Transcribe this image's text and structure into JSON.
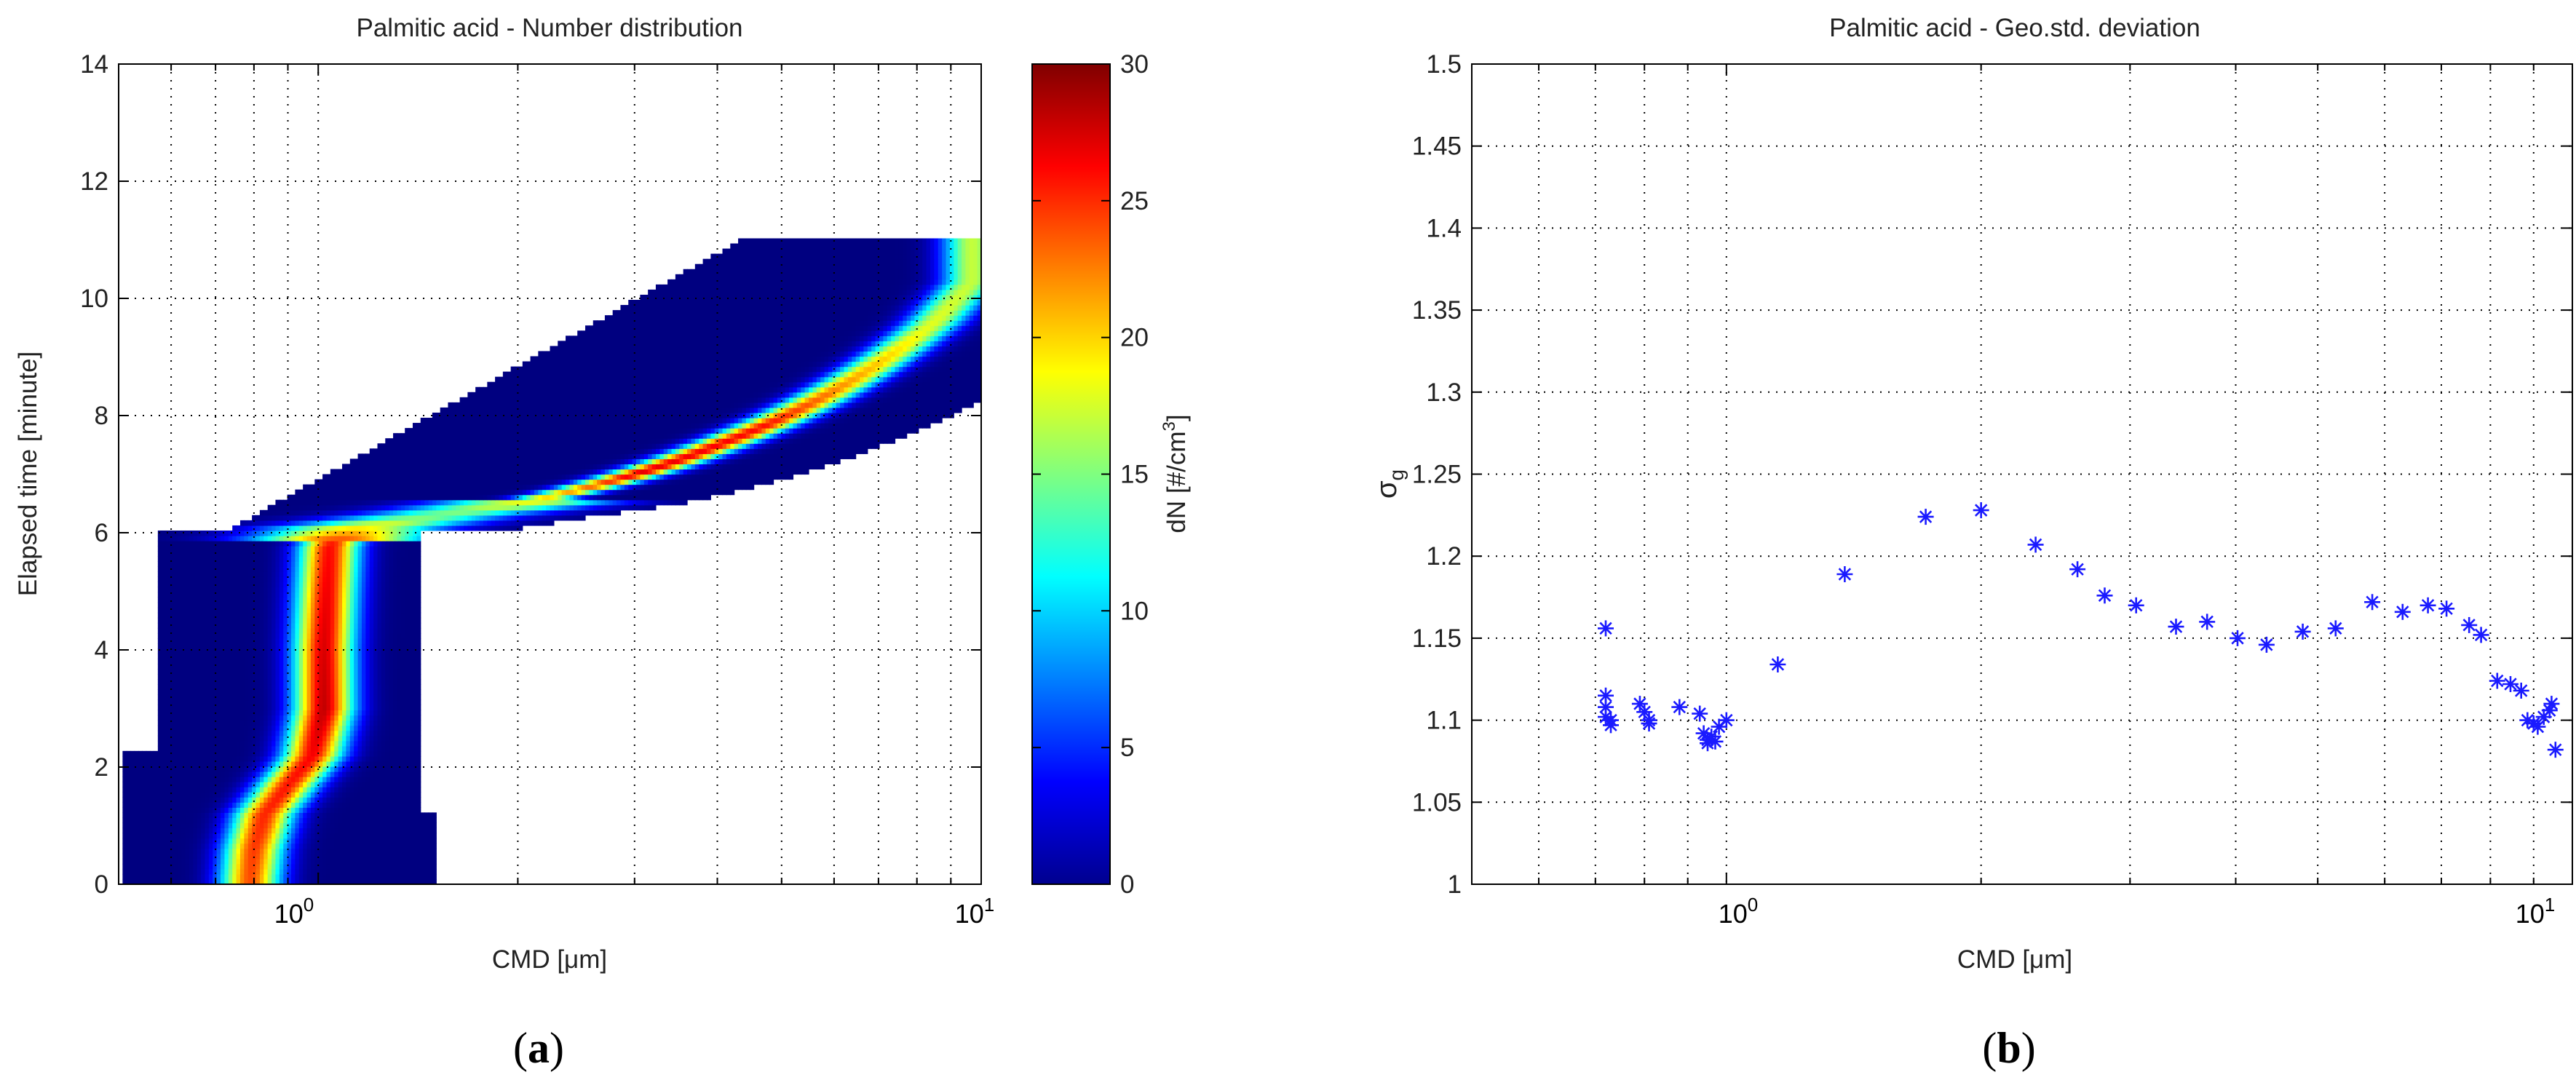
{
  "chart_data": [
    {
      "type": "heatmap",
      "panel_label_open": "(",
      "panel_label_letter": "a",
      "panel_label_close": ")",
      "title": "Palmitic acid - Number distribution",
      "xlabel": "CMD [μm]",
      "ylabel": "Elapsed time [minute]",
      "x_scale": "log",
      "xlim": [
        0.5,
        10
      ],
      "ylim": [
        0,
        14
      ],
      "y_ticks": [
        "0",
        "2",
        "4",
        "6",
        "8",
        "10",
        "12",
        "14"
      ],
      "x_tick_base": "10",
      "x_tick_exponents": [
        "0",
        "1"
      ],
      "grid": true,
      "colormap": "jet",
      "colorbar": {
        "label_prefix": "dN [#/cm",
        "label_sup": "3",
        "label_suffix": "]",
        "min": 0,
        "max": 30,
        "ticks": [
          "0",
          "5",
          "10",
          "15",
          "20",
          "25",
          "30"
        ]
      },
      "ridge": [
        {
          "t": 0.1,
          "cmd": 0.79
        },
        {
          "t": 0.6,
          "cmd": 0.8
        },
        {
          "t": 1.2,
          "cmd": 0.83
        },
        {
          "t": 1.7,
          "cmd": 0.9
        },
        {
          "t": 2.2,
          "cmd": 0.98
        },
        {
          "t": 3.0,
          "cmd": 1.02
        },
        {
          "t": 4.0,
          "cmd": 1.02
        },
        {
          "t": 5.0,
          "cmd": 1.03
        },
        {
          "t": 5.8,
          "cmd": 1.04
        },
        {
          "t": 6.1,
          "cmd": 1.15
        },
        {
          "t": 6.3,
          "cmd": 1.5
        },
        {
          "t": 6.5,
          "cmd": 2.0
        },
        {
          "t": 6.9,
          "cmd": 2.8
        },
        {
          "t": 7.5,
          "cmd": 4.0
        },
        {
          "t": 8.2,
          "cmd": 5.5
        },
        {
          "t": 8.9,
          "cmd": 7.0
        },
        {
          "t": 9.6,
          "cmd": 8.5
        },
        {
          "t": 10.3,
          "cmd": 9.7
        }
      ],
      "ridge_peak": [
        {
          "t": 0.1,
          "v": 24
        },
        {
          "t": 1.0,
          "v": 25
        },
        {
          "t": 2.0,
          "v": 26
        },
        {
          "t": 3.0,
          "v": 28
        },
        {
          "t": 4.5,
          "v": 27
        },
        {
          "t": 5.8,
          "v": 26
        },
        {
          "t": 6.3,
          "v": 14
        },
        {
          "t": 7.0,
          "v": 27
        },
        {
          "t": 7.8,
          "v": 26
        },
        {
          "t": 8.5,
          "v": 22
        },
        {
          "t": 9.5,
          "v": 18
        },
        {
          "t": 10.3,
          "v": 17
        }
      ]
    },
    {
      "type": "scatter",
      "panel_label_open": "(",
      "panel_label_letter": "b",
      "panel_label_close": ")",
      "title": "Palmitic acid - Geo.std. deviation",
      "xlabel": "CMD [μm]",
      "ylabel_main": "σ",
      "ylabel_sub": "g",
      "x_scale": "log",
      "xlim": [
        0.5,
        10
      ],
      "ylim": [
        1.0,
        1.5
      ],
      "y_ticks": [
        "1",
        "1.05",
        "1.1",
        "1.15",
        "1.2",
        "1.25",
        "1.3",
        "1.35",
        "1.4",
        "1.45",
        "1.5"
      ],
      "x_tick_base": "10",
      "x_tick_exponents": [
        "0",
        "1"
      ],
      "grid": true,
      "marker": "*",
      "color": "#1a1aff",
      "points": [
        {
          "x": 0.72,
          "y": 1.156
        },
        {
          "x": 0.72,
          "y": 1.115
        },
        {
          "x": 0.72,
          "y": 1.108
        },
        {
          "x": 0.72,
          "y": 1.102
        },
        {
          "x": 0.73,
          "y": 1.1
        },
        {
          "x": 0.73,
          "y": 1.097
        },
        {
          "x": 0.79,
          "y": 1.11
        },
        {
          "x": 0.8,
          "y": 1.105
        },
        {
          "x": 0.81,
          "y": 1.1
        },
        {
          "x": 0.81,
          "y": 1.098
        },
        {
          "x": 0.88,
          "y": 1.108
        },
        {
          "x": 0.93,
          "y": 1.104
        },
        {
          "x": 0.94,
          "y": 1.092
        },
        {
          "x": 0.95,
          "y": 1.088
        },
        {
          "x": 0.95,
          "y": 1.086
        },
        {
          "x": 0.96,
          "y": 1.09
        },
        {
          "x": 0.97,
          "y": 1.087
        },
        {
          "x": 0.98,
          "y": 1.096
        },
        {
          "x": 1.0,
          "y": 1.1
        },
        {
          "x": 1.15,
          "y": 1.134
        },
        {
          "x": 1.38,
          "y": 1.189
        },
        {
          "x": 1.72,
          "y": 1.224
        },
        {
          "x": 2.0,
          "y": 1.228
        },
        {
          "x": 2.32,
          "y": 1.207
        },
        {
          "x": 2.6,
          "y": 1.192
        },
        {
          "x": 2.8,
          "y": 1.176
        },
        {
          "x": 3.05,
          "y": 1.17
        },
        {
          "x": 3.4,
          "y": 1.157
        },
        {
          "x": 3.7,
          "y": 1.16
        },
        {
          "x": 4.02,
          "y": 1.15
        },
        {
          "x": 4.35,
          "y": 1.146
        },
        {
          "x": 4.8,
          "y": 1.154
        },
        {
          "x": 5.25,
          "y": 1.156
        },
        {
          "x": 5.8,
          "y": 1.172
        },
        {
          "x": 6.3,
          "y": 1.166
        },
        {
          "x": 6.75,
          "y": 1.17
        },
        {
          "x": 7.1,
          "y": 1.168
        },
        {
          "x": 7.55,
          "y": 1.158
        },
        {
          "x": 7.8,
          "y": 1.152
        },
        {
          "x": 8.15,
          "y": 1.124
        },
        {
          "x": 8.45,
          "y": 1.122
        },
        {
          "x": 8.7,
          "y": 1.118
        },
        {
          "x": 8.85,
          "y": 1.1
        },
        {
          "x": 9.0,
          "y": 1.098
        },
        {
          "x": 9.1,
          "y": 1.096
        },
        {
          "x": 9.25,
          "y": 1.102
        },
        {
          "x": 9.4,
          "y": 1.106
        },
        {
          "x": 9.45,
          "y": 1.11
        },
        {
          "x": 9.55,
          "y": 1.082
        }
      ]
    }
  ]
}
